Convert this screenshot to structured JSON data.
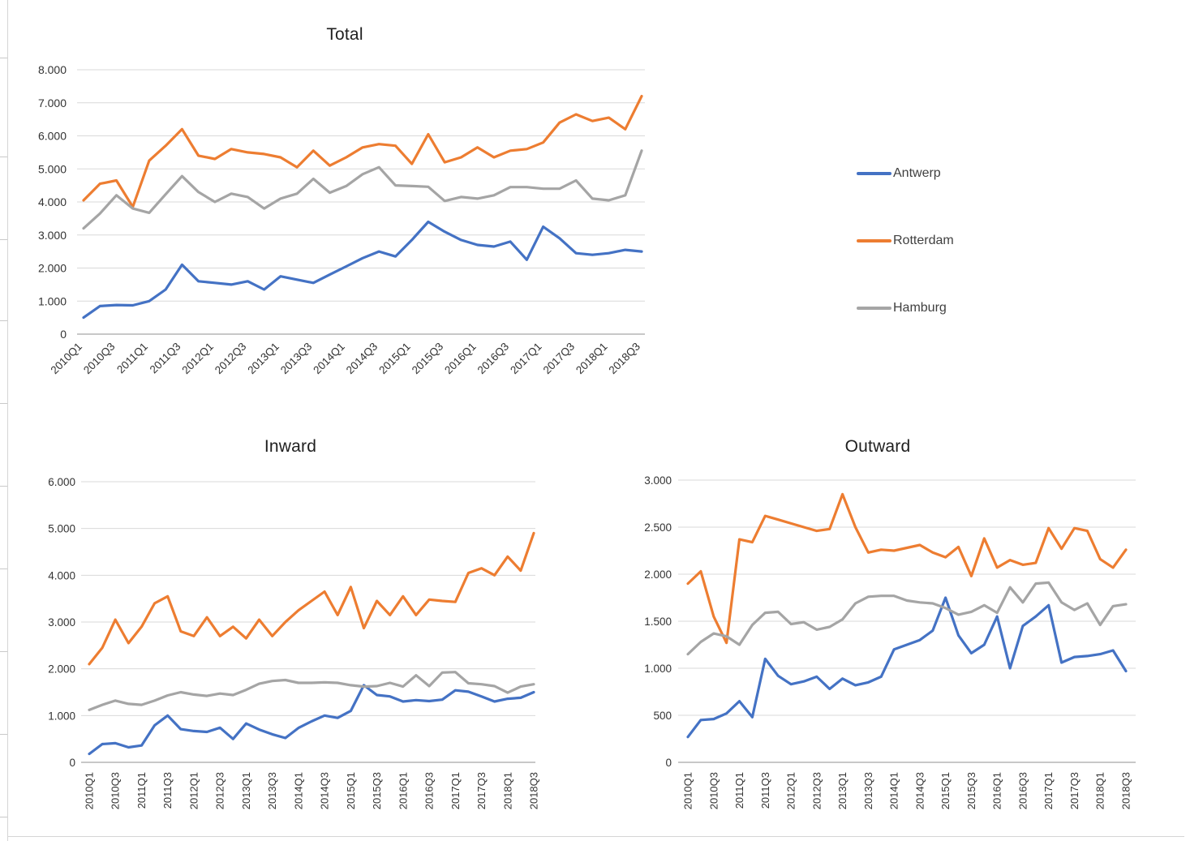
{
  "legend": {
    "items": [
      {
        "label": "Antwerp",
        "color": "#4472C4"
      },
      {
        "label": "Rotterdam",
        "color": "#ED7D31"
      },
      {
        "label": "Hamburg",
        "color": "#A5A5A5"
      }
    ]
  },
  "chart_data": [
    {
      "id": "total",
      "type": "line",
      "title": "Total",
      "grid": true,
      "legend_position": "right-outside",
      "ylim": [
        0,
        8000
      ],
      "y_tick_step": 1000,
      "y_tick_labels": [
        "0",
        "1.000",
        "2.000",
        "3.000",
        "4.000",
        "5.000",
        "6.000",
        "7.000",
        "8.000"
      ],
      "x_label_rotation": -45,
      "categories": [
        "2010Q1",
        "2010Q2",
        "2010Q3",
        "2010Q4",
        "2011Q1",
        "2011Q2",
        "2011Q3",
        "2011Q4",
        "2012Q1",
        "2012Q2",
        "2012Q3",
        "2012Q4",
        "2013Q1",
        "2013Q2",
        "2013Q3",
        "2013Q4",
        "2014Q1",
        "2014Q2",
        "2014Q3",
        "2014Q4",
        "2015Q1",
        "2015Q2",
        "2015Q3",
        "2015Q4",
        "2016Q1",
        "2016Q2",
        "2016Q3",
        "2016Q4",
        "2017Q1",
        "2017Q2",
        "2017Q3",
        "2017Q4",
        "2018Q1",
        "2018Q2",
        "2018Q3"
      ],
      "x_tick_labels": [
        "2010Q1",
        "2010Q3",
        "2011Q1",
        "2011Q3",
        "2012Q1",
        "2012Q3",
        "2013Q1",
        "2013Q3",
        "2014Q1",
        "2014Q3",
        "2015Q1",
        "2015Q3",
        "2016Q1",
        "2016Q3",
        "2017Q1",
        "2017Q3",
        "2018Q1",
        "2018Q3"
      ],
      "series": [
        {
          "name": "Antwerp",
          "color": "#4472C4",
          "values": [
            500,
            850,
            880,
            870,
            1000,
            1350,
            2100,
            1600,
            1550,
            1500,
            1600,
            1350,
            1750,
            1650,
            1550,
            1800,
            2050,
            2300,
            2500,
            2350,
            2850,
            3400,
            3100,
            2850,
            2700,
            2650,
            2800,
            2250,
            3250,
            2900,
            2450,
            2400,
            2450,
            2550,
            2500
          ]
        },
        {
          "name": "Rotterdam",
          "color": "#ED7D31",
          "values": [
            4050,
            4550,
            4650,
            3850,
            5250,
            5700,
            6200,
            5400,
            5300,
            5600,
            5500,
            5450,
            5350,
            5050,
            5550,
            5100,
            5350,
            5650,
            5750,
            5700,
            5150,
            6050,
            5200,
            5350,
            5650,
            5350,
            5550,
            5600,
            5800,
            6400,
            6650,
            6450,
            6550,
            6200,
            7200
          ]
        },
        {
          "name": "Hamburg",
          "color": "#A5A5A5",
          "values": [
            3200,
            3650,
            4200,
            3800,
            3670,
            4230,
            4780,
            4300,
            4000,
            4250,
            4150,
            3800,
            4100,
            4250,
            4700,
            4280,
            4480,
            4840,
            5050,
            4500,
            4480,
            4460,
            4030,
            4150,
            4100,
            4200,
            4450,
            4450,
            4400,
            4400,
            4650,
            4100,
            4050,
            4200,
            5550
          ]
        }
      ]
    },
    {
      "id": "inward",
      "type": "line",
      "title": "Inward",
      "grid": true,
      "legend_position": "none",
      "ylim": [
        0,
        6000
      ],
      "y_tick_step": 1000,
      "y_tick_labels": [
        "0",
        "1.000",
        "2.000",
        "3.000",
        "4.000",
        "5.000",
        "6.000"
      ],
      "x_label_rotation": -90,
      "categories": [
        "2010Q1",
        "2010Q2",
        "2010Q3",
        "2010Q4",
        "2011Q1",
        "2011Q2",
        "2011Q3",
        "2011Q4",
        "2012Q1",
        "2012Q2",
        "2012Q3",
        "2012Q4",
        "2013Q1",
        "2013Q2",
        "2013Q3",
        "2013Q4",
        "2014Q1",
        "2014Q2",
        "2014Q3",
        "2014Q4",
        "2015Q1",
        "2015Q2",
        "2015Q3",
        "2015Q4",
        "2016Q1",
        "2016Q2",
        "2016Q3",
        "2016Q4",
        "2017Q1",
        "2017Q2",
        "2017Q3",
        "2017Q4",
        "2018Q1",
        "2018Q2",
        "2018Q3"
      ],
      "x_tick_labels": [
        "2010Q1",
        "2010Q3",
        "2011Q1",
        "2011Q3",
        "2012Q1",
        "2012Q3",
        "2013Q1",
        "2013Q3",
        "2014Q1",
        "2014Q3",
        "2015Q1",
        "2015Q3",
        "2016Q1",
        "2016Q3",
        "2017Q1",
        "2017Q3",
        "2018Q1",
        "2018Q3"
      ],
      "series": [
        {
          "name": "Antwerp",
          "color": "#4472C4",
          "values": [
            180,
            390,
            410,
            320,
            360,
            790,
            1000,
            710,
            670,
            650,
            740,
            500,
            830,
            700,
            600,
            520,
            735,
            875,
            1000,
            950,
            1100,
            1650,
            1440,
            1410,
            1300,
            1330,
            1310,
            1340,
            1540,
            1510,
            1410,
            1300,
            1360,
            1380,
            1500
          ]
        },
        {
          "name": "Rotterdam",
          "color": "#ED7D31",
          "values": [
            2100,
            2450,
            3050,
            2550,
            2900,
            3400,
            3550,
            2800,
            2700,
            3100,
            2700,
            2900,
            2650,
            3050,
            2700,
            3000,
            3250,
            3450,
            3650,
            3150,
            3750,
            2870,
            3450,
            3150,
            3550,
            3150,
            3480,
            3450,
            3430,
            4050,
            4150,
            4000,
            4400,
            4100,
            4900
          ]
        },
        {
          "name": "Hamburg",
          "color": "#A5A5A5",
          "values": [
            1120,
            1230,
            1320,
            1250,
            1230,
            1320,
            1430,
            1500,
            1450,
            1420,
            1470,
            1440,
            1550,
            1680,
            1740,
            1760,
            1700,
            1700,
            1710,
            1700,
            1650,
            1620,
            1630,
            1700,
            1620,
            1860,
            1630,
            1920,
            1930,
            1690,
            1670,
            1630,
            1490,
            1620,
            1670
          ]
        }
      ]
    },
    {
      "id": "outward",
      "type": "line",
      "title": "Outward",
      "grid": true,
      "legend_position": "none",
      "ylim": [
        0,
        3000
      ],
      "y_tick_step": 500,
      "y_tick_labels": [
        "0",
        "500",
        "1.000",
        "1.500",
        "2.000",
        "2.500",
        "3.000"
      ],
      "x_label_rotation": -90,
      "categories": [
        "2010Q1",
        "2010Q2",
        "2010Q3",
        "2010Q4",
        "2011Q1",
        "2011Q2",
        "2011Q3",
        "2011Q4",
        "2012Q1",
        "2012Q2",
        "2012Q3",
        "2012Q4",
        "2013Q1",
        "2013Q2",
        "2013Q3",
        "2013Q4",
        "2014Q1",
        "2014Q2",
        "2014Q3",
        "2014Q4",
        "2015Q1",
        "2015Q2",
        "2015Q3",
        "2015Q4",
        "2016Q1",
        "2016Q2",
        "2016Q3",
        "2016Q4",
        "2017Q1",
        "2017Q2",
        "2017Q3",
        "2017Q4",
        "2018Q1",
        "2018Q2",
        "2018Q3"
      ],
      "x_tick_labels": [
        "2010Q1",
        "2010Q3",
        "2011Q1",
        "2011Q3",
        "2012Q1",
        "2012Q3",
        "2013Q1",
        "2013Q3",
        "2014Q1",
        "2014Q3",
        "2015Q1",
        "2015Q3",
        "2016Q1",
        "2016Q3",
        "2017Q1",
        "2017Q3",
        "2018Q1",
        "2018Q3"
      ],
      "series": [
        {
          "name": "Antwerp",
          "color": "#4472C4",
          "values": [
            270,
            450,
            460,
            520,
            650,
            480,
            1100,
            920,
            830,
            860,
            910,
            780,
            890,
            820,
            850,
            910,
            1200,
            1250,
            1300,
            1400,
            1750,
            1350,
            1160,
            1250,
            1550,
            1000,
            1450,
            1550,
            1670,
            1060,
            1120,
            1130,
            1150,
            1190,
            970
          ]
        },
        {
          "name": "Rotterdam",
          "color": "#ED7D31",
          "values": [
            1900,
            2030,
            1550,
            1270,
            2370,
            2340,
            2620,
            2580,
            2540,
            2500,
            2460,
            2480,
            2850,
            2500,
            2230,
            2260,
            2250,
            2280,
            2310,
            2230,
            2180,
            2290,
            1980,
            2380,
            2070,
            2150,
            2100,
            2120,
            2490,
            2270,
            2490,
            2460,
            2160,
            2070,
            2260
          ]
        },
        {
          "name": "Hamburg",
          "color": "#A5A5A5",
          "values": [
            1150,
            1280,
            1370,
            1340,
            1250,
            1460,
            1590,
            1600,
            1470,
            1490,
            1410,
            1440,
            1520,
            1690,
            1760,
            1770,
            1770,
            1720,
            1700,
            1690,
            1640,
            1570,
            1600,
            1670,
            1590,
            1860,
            1700,
            1900,
            1910,
            1700,
            1620,
            1690,
            1460,
            1660,
            1680
          ]
        }
      ]
    }
  ]
}
